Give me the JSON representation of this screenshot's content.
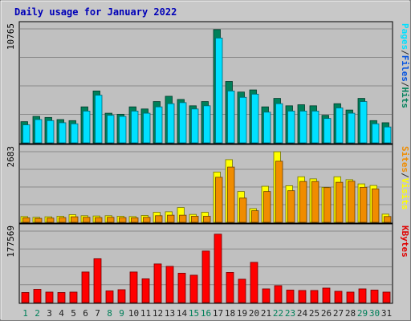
{
  "chart_data": {
    "type": "bar",
    "title": "Daily usage for January 2022",
    "categories": [
      "1",
      "2",
      "3",
      "4",
      "5",
      "6",
      "7",
      "8",
      "9",
      "10",
      "11",
      "12",
      "13",
      "14",
      "15",
      "16",
      "17",
      "18",
      "19",
      "20",
      "21",
      "22",
      "23",
      "24",
      "25",
      "26",
      "27",
      "28",
      "29",
      "30",
      "31"
    ],
    "weekend_days": [
      "1",
      "2",
      "8",
      "9",
      "15",
      "16",
      "22",
      "23",
      "29",
      "30"
    ],
    "panels": [
      {
        "id": "hits-files-pages",
        "max_label": "10765",
        "ylim": [
          0,
          10765
        ],
        "legend": [
          "Pages",
          "/",
          "Files",
          "/",
          "Hits"
        ],
        "legend_colors": [
          "#00e0ff",
          "#303030",
          "#0050e0",
          "#303030",
          "#00805a"
        ],
        "series": [
          {
            "name": "Hits",
            "color": "#00805a",
            "values": [
              2000,
              2500,
              2400,
              2200,
              2100,
              3400,
              4900,
              2800,
              2700,
              3400,
              3200,
              3900,
              4400,
              4100,
              3500,
              3900,
              10700,
              5800,
              4800,
              5000,
              3400,
              4200,
              3500,
              3600,
              3500,
              2600,
              3700,
              3100,
              4200,
              2100,
              1900
            ]
          },
          {
            "name": "Files",
            "color": "#0050e0",
            "values": [
              2000,
              2500,
              2400,
              2200,
              2100,
              3400,
              4900,
              2800,
              2700,
              3400,
              3200,
              3900,
              4400,
              4100,
              3500,
              3900,
              10700,
              5800,
              4800,
              5000,
              3400,
              4200,
              3500,
              3600,
              3500,
              2600,
              3700,
              3100,
              4200,
              2100,
              1900
            ]
          },
          {
            "name": "Pages",
            "color": "#00e0ff",
            "values": [
              1700,
              2200,
              2100,
              1900,
              1800,
              3000,
              4500,
              2600,
              2500,
              3000,
              2800,
              3400,
              3700,
              3800,
              3200,
              3500,
              9900,
              4900,
              4300,
              4600,
              2900,
              3700,
              3000,
              3000,
              3000,
              2300,
              3300,
              2800,
              3900,
              1800,
              1500
            ]
          }
        ]
      },
      {
        "id": "visits-sites",
        "max_label": "2683",
        "ylim": [
          0,
          2683
        ],
        "legend": [
          "Sites",
          "/",
          "Visits"
        ],
        "legend_colors": [
          "#f08c00",
          "#303030",
          "#ffff00"
        ],
        "series": [
          {
            "name": "Visits",
            "color": "#ffff00",
            "values": [
              220,
              190,
              210,
              230,
              290,
              250,
              240,
              250,
              230,
              220,
              260,
              380,
              400,
              560,
              300,
              380,
              1910,
              2380,
              1170,
              520,
              1370,
              2680,
              1390,
              1730,
              1650,
              1330,
              1730,
              1620,
              1460,
              1400,
              310
            ]
          },
          {
            "name": "Sites",
            "color": "#f08c00",
            "values": [
              170,
              150,
              160,
              180,
              210,
              190,
              180,
              190,
              180,
              170,
              190,
              250,
              270,
              270,
              230,
              230,
              1710,
              2100,
              920,
              440,
              1170,
              2320,
              1200,
              1550,
              1550,
              1320,
              1520,
              1560,
              1330,
              1270,
              220
            ]
          }
        ]
      },
      {
        "id": "kbytes",
        "max_label": "177569",
        "ylim": [
          0,
          177569
        ],
        "legend": [
          "KBytes"
        ],
        "legend_colors": [
          "#e00000"
        ],
        "series": [
          {
            "name": "KBytes",
            "color": "#ff0000",
            "values": [
              25000,
              33000,
              26000,
              25000,
              26000,
              76000,
              109000,
              29000,
              32000,
              76000,
              59000,
              96000,
              90000,
              73000,
              68000,
              128000,
              170000,
              75000,
              58000,
              100000,
              34000,
              42000,
              31000,
              30000,
              30000,
              36000,
              28000,
              26000,
              34000,
              31000,
              26000
            ]
          }
        ]
      }
    ]
  }
}
